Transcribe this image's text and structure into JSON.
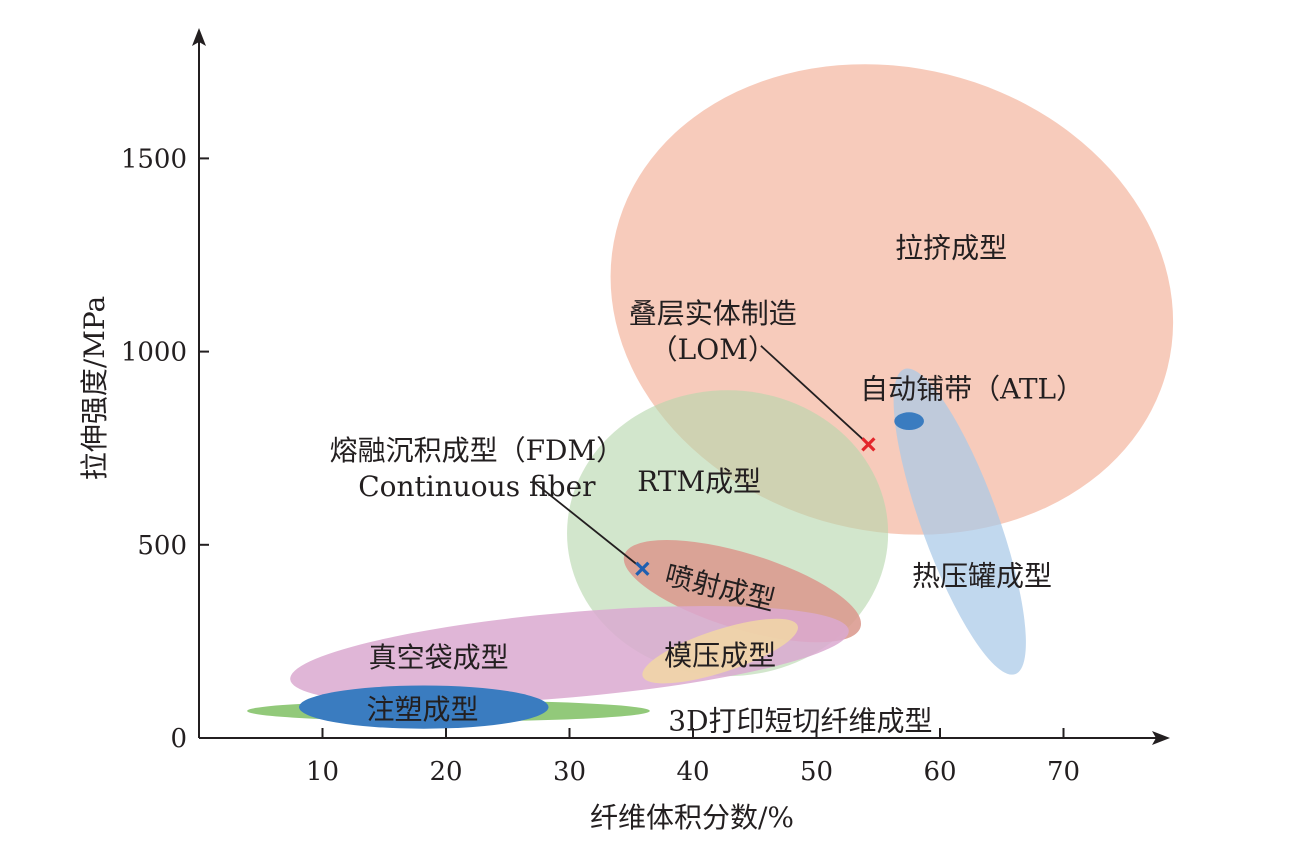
{
  "chart_data": {
    "type": "scatter",
    "title": "",
    "xlabel": "纤维体积分数/%",
    "ylabel": "拉伸强度/MPa",
    "xlim": [
      0,
      78
    ],
    "ylim": [
      0,
      1830
    ],
    "x_ticks": [
      10,
      20,
      30,
      40,
      50,
      60,
      70
    ],
    "y_ticks": [
      0,
      500,
      1000,
      1500
    ],
    "grid": false,
    "legend": "none",
    "regions": [
      {
        "name": "拉挤成型",
        "color": "#f2ab91",
        "opacity": 0.62,
        "cx": 56.1,
        "cy": 1135,
        "rx": 23,
        "ry": 600,
        "rotate": 14,
        "label": {
          "x": 60.9,
          "y": 1270
        }
      },
      {
        "name": "RTM成型",
        "color": "#b7d6ad",
        "opacity": 0.62,
        "cx": 42.8,
        "cy": 530,
        "rx": 13,
        "ry": 370,
        "rotate": 0,
        "label": {
          "x": 40.5,
          "y": 665
        }
      },
      {
        "name": "热压罐成型",
        "color": "#a9c9e8",
        "opacity": 0.72,
        "cx": 61.6,
        "cy": 560,
        "rx": 3.1,
        "ry": 420,
        "rotate": -20,
        "label": {
          "x": 63.4,
          "y": 420
        }
      },
      {
        "name": "喷射成型",
        "color": "#db9a8e",
        "opacity": 0.88,
        "cx": 44,
        "cy": 380,
        "rx": 10,
        "ry": 98,
        "rotate": 17,
        "label": {
          "x": 42.2,
          "y": 390
        }
      },
      {
        "name": "真空袋成型",
        "color": "#dba9d0",
        "opacity": 0.85,
        "cx": 30,
        "cy": 215,
        "rx": 22.7,
        "ry": 110,
        "rotate": -5,
        "label": {
          "x": 19.4,
          "y": 210
        }
      },
      {
        "name": "模压成型",
        "color": "#f1d7a4",
        "opacity": 0.85,
        "cx": 42.2,
        "cy": 225,
        "rx": 6.6,
        "ry": 55,
        "rotate": -18,
        "label": {
          "x": 42.2,
          "y": 215
        }
      },
      {
        "name": "3D打印短切纤维成型",
        "color": "#92c97a",
        "opacity": 1.0,
        "cx": 20.2,
        "cy": 70,
        "rx": 16.3,
        "ry": 27,
        "rotate": 0,
        "label": {
          "x": 48.7,
          "y": 45
        }
      },
      {
        "name": "注塑成型",
        "color": "#3a7cc0",
        "opacity": 1.0,
        "cx": 18.2,
        "cy": 80,
        "rx": 10.1,
        "ry": 56,
        "rotate": 0,
        "label": {
          "x": 18.1,
          "y": 75
        }
      },
      {
        "name": "自动铺带（ATL）",
        "color": "#3a7cc0",
        "opacity": 1.0,
        "cx": 57.5,
        "cy": 820,
        "rx": 1.2,
        "ry": 23,
        "rotate": 0,
        "label": {
          "x": 62.6,
          "y": 905
        }
      }
    ],
    "points": [
      {
        "name": "叠层实体制造（LOM）",
        "lines": [
          "叠层实体制造",
          "（LOM）"
        ],
        "x": 54.2,
        "y": 760,
        "color": "#e3252a",
        "marker": "x",
        "label": {
          "x": 41.6,
          "y": 1100
        },
        "leader_from": {
          "x": 45.5,
          "y": 1015
        }
      },
      {
        "name": "熔融沉积成型（FDM）Continuous fiber",
        "lines": [
          "熔融沉积成型（FDM）",
          "Continuous fiber"
        ],
        "x": 35.9,
        "y": 438,
        "color": "#1f5fb0",
        "marker": "x",
        "label": {
          "x": 22.5,
          "y": 745
        },
        "leader_from": {
          "x": 27,
          "y": 665
        }
      }
    ]
  }
}
